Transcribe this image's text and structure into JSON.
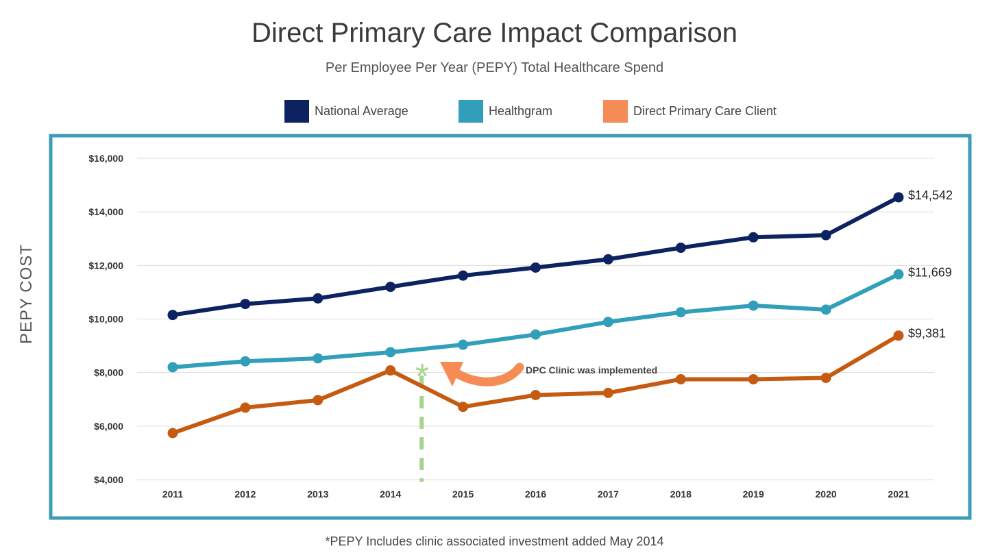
{
  "chart_data": {
    "type": "line",
    "title": "Direct Primary Care Impact Comparison",
    "subtitle": "Per Employee Per Year (PEPY) Total Healthcare Spend",
    "ylabel": "PEPY COST",
    "xlabel": "",
    "x": [
      "2011",
      "2012",
      "2013",
      "2014",
      "2015",
      "2016",
      "2017",
      "2018",
      "2019",
      "2020",
      "2021"
    ],
    "ylim": [
      4000,
      16000
    ],
    "yticks": [
      4000,
      6000,
      8000,
      10000,
      12000,
      14000,
      16000
    ],
    "ytick_labels": [
      "$4,000",
      "$6,000",
      "$8,000",
      "$10,000",
      "$12,000",
      "$14,000",
      "$16,000"
    ],
    "grid": true,
    "legend_position": "top",
    "series": [
      {
        "name": "National Average",
        "color": "#0d2260",
        "values": [
          10150,
          10560,
          10770,
          11200,
          11620,
          11920,
          12230,
          12660,
          13050,
          13130,
          14542
        ],
        "end_label": "$14,542"
      },
      {
        "name": "Healthgram",
        "color": "#319fb9",
        "values": [
          8200,
          8420,
          8530,
          8760,
          9040,
          9420,
          9890,
          10250,
          10500,
          10350,
          11669
        ],
        "end_label": "$11,669"
      },
      {
        "name": "Direct Primary Care Client",
        "color": "#c55a11",
        "legend_color": "#f58b55",
        "values": [
          5740,
          6690,
          6970,
          8080,
          6720,
          7160,
          7240,
          7750,
          7750,
          7800,
          9381
        ],
        "end_label": "$9,381"
      }
    ],
    "annotation": {
      "text": "DPC Clinic was implemented",
      "marker_x": 2014.43
    },
    "footnote": "*PEPY Includes clinic associated investment added May 2014"
  }
}
